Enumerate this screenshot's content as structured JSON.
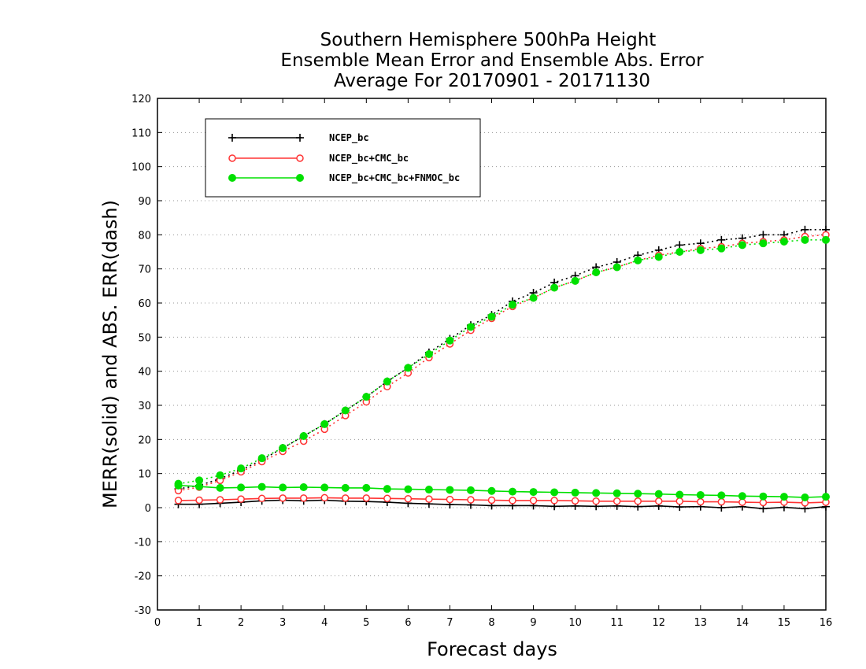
{
  "chart_data": {
    "type": "line",
    "title": [
      "Southern Hemisphere 500hPa Height",
      "Ensemble Mean Error and Ensemble Abs. Error",
      "Average For 20170901 - 20171130"
    ],
    "xlabel": "Forecast days",
    "ylabel": "MERR(solid) and ABS. ERR(dash)",
    "xlim": [
      0,
      16
    ],
    "ylim": [
      -30,
      120
    ],
    "xticks": [
      0,
      1,
      2,
      3,
      4,
      5,
      6,
      7,
      8,
      9,
      10,
      11,
      12,
      13,
      14,
      15,
      16
    ],
    "yticks": [
      -30,
      -20,
      -10,
      0,
      10,
      20,
      30,
      40,
      50,
      60,
      70,
      80,
      90,
      100,
      110,
      120
    ],
    "grid": "horizontal dotted",
    "legend_position": "top-left",
    "x": [
      0.5,
      1,
      1.5,
      2,
      2.5,
      3,
      3.5,
      4,
      4.5,
      5,
      5.5,
      6,
      6.5,
      7,
      7.5,
      8,
      8.5,
      9,
      9.5,
      10,
      10.5,
      11,
      11.5,
      12,
      12.5,
      13,
      13.5,
      14,
      14.5,
      15,
      15.5,
      16
    ],
    "series": [
      {
        "name": "NCEP_bc",
        "color": "#000000",
        "marker": "plus",
        "merr": [
          1,
          1,
          1.3,
          1.6,
          2,
          2.2,
          2,
          2.2,
          1.9,
          1.8,
          1.6,
          1.3,
          1.1,
          0.9,
          0.8,
          0.6,
          0.6,
          0.6,
          0.4,
          0.5,
          0.4,
          0.5,
          0.3,
          0.5,
          0.2,
          0.3,
          0,
          0.3,
          -0.3,
          0.1,
          -0.3,
          0.3
        ],
        "abs_err": [
          5.5,
          6.5,
          8.5,
          11,
          14,
          17.5,
          21,
          24.5,
          28.5,
          32.5,
          37,
          41,
          45.5,
          49.5,
          53.5,
          56.5,
          60.5,
          63,
          66,
          68,
          70.5,
          72,
          74,
          75.5,
          77,
          77.5,
          78.5,
          79,
          80,
          80,
          81.5,
          81.5
        ]
      },
      {
        "name": "NCEP_bc+CMC_bc",
        "color": "#ff3333",
        "marker": "open-circle",
        "merr": [
          2.1,
          2.2,
          2.3,
          2.5,
          2.7,
          2.8,
          2.8,
          2.9,
          2.8,
          2.8,
          2.7,
          2.6,
          2.5,
          2.4,
          2.3,
          2.2,
          2.1,
          2.1,
          2.1,
          2,
          1.9,
          1.9,
          1.9,
          1.9,
          1.9,
          1.7,
          1.7,
          1.6,
          1.5,
          1.6,
          1.4,
          1.6
        ],
        "abs_err": [
          5,
          6,
          8,
          10.5,
          13.5,
          16.5,
          19.5,
          23,
          27,
          31,
          35.5,
          39.5,
          44,
          48,
          52,
          55.5,
          59,
          61.5,
          64.5,
          66.5,
          69,
          70.5,
          72.5,
          74,
          75,
          76,
          76.5,
          77.5,
          78,
          78.5,
          79.5,
          80
        ]
      },
      {
        "name": "NCEP_bc+CMC_bc+FNMOC_bc",
        "color": "#00e000",
        "marker": "filled-circle",
        "merr": [
          6.5,
          6.2,
          5.8,
          5.9,
          6.1,
          5.9,
          6,
          5.9,
          5.8,
          5.8,
          5.5,
          5.4,
          5.3,
          5.2,
          5.1,
          4.9,
          4.7,
          4.6,
          4.5,
          4.4,
          4.3,
          4.2,
          4.1,
          4,
          3.8,
          3.7,
          3.6,
          3.4,
          3.3,
          3.2,
          3,
          3.2
        ],
        "abs_err": [
          7,
          8,
          9.5,
          11.5,
          14.5,
          17.5,
          21,
          24.5,
          28.5,
          32.5,
          37,
          41,
          45,
          49,
          53,
          56,
          59.5,
          61.5,
          64.5,
          66.5,
          69,
          70.5,
          72.5,
          73.5,
          75,
          75.5,
          76,
          77,
          77.5,
          78,
          78.5,
          78.5
        ]
      }
    ]
  }
}
